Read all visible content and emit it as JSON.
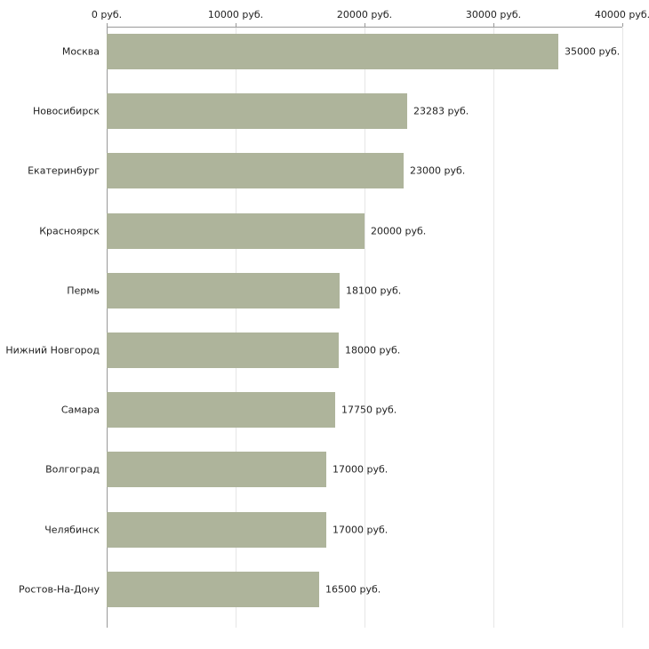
{
  "chart_data": {
    "type": "bar",
    "orientation": "horizontal",
    "categories": [
      "Москва",
      "Новосибирск",
      "Екатеринбург",
      "Красноярск",
      "Пермь",
      "Нижний Новгород",
      "Самара",
      "Волгоград",
      "Челябинск",
      "Ростов-На-Дону"
    ],
    "values": [
      35000,
      23283,
      23000,
      20000,
      18100,
      18000,
      17750,
      17000,
      17000,
      16500
    ],
    "value_labels": [
      "35000 руб.",
      "23283 руб.",
      "23000 руб.",
      "20000 руб.",
      "18100 руб.",
      "18000 руб.",
      "17750 руб.",
      "17000 руб.",
      "17000 руб.",
      "16500 руб."
    ],
    "x_ticks": [
      0,
      10000,
      20000,
      30000,
      40000
    ],
    "x_tick_labels": [
      "0 руб.",
      "10000 руб.",
      "20000 руб.",
      "30000 руб.",
      "40000 руб."
    ],
    "xlim": [
      0,
      40000
    ],
    "grid": true,
    "legend": "none",
    "title": "",
    "xlabel": "",
    "ylabel": "",
    "colors": {
      "bar": "#aeb49b",
      "axis": "#999999",
      "grid": "#e6e6e6",
      "text": "#222222",
      "background": "#ffffff"
    }
  }
}
